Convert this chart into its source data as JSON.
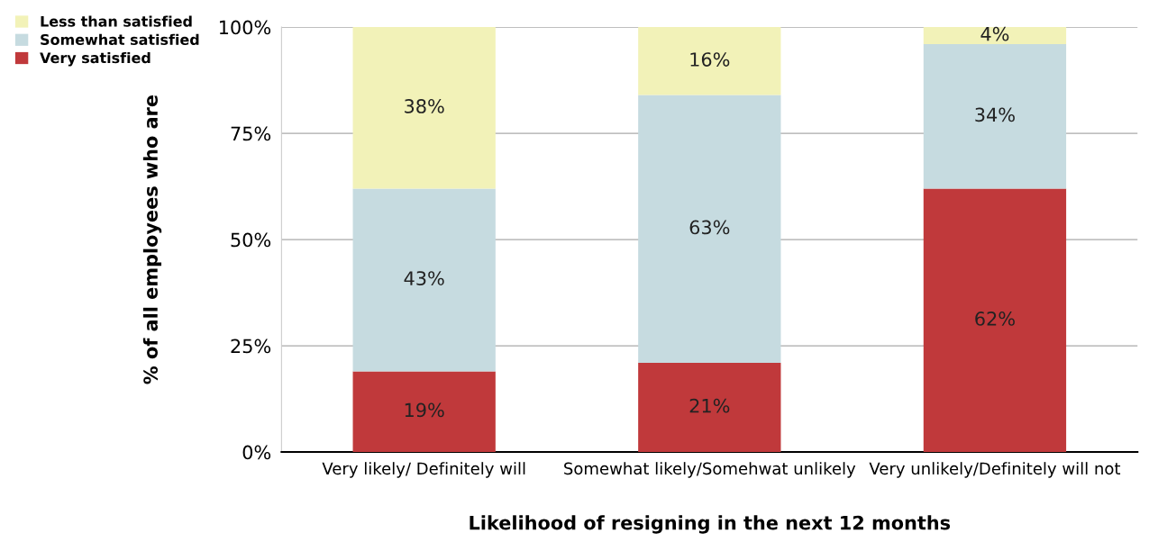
{
  "chart_data": {
    "type": "bar",
    "stacked": true,
    "xlabel": "Likelihood of resigning in the next 12 months",
    "ylabel": "% of all employees who are",
    "categories": [
      "Very likely/ Definitely will",
      "Somewhat likely/Somehwat unlikely",
      "Very unlikely/Definitely will not"
    ],
    "series": [
      {
        "name": "Very satisfied",
        "color": "#c0393b",
        "values": [
          19,
          21,
          62
        ],
        "value_labels": [
          "19%",
          "21%",
          "62%"
        ]
      },
      {
        "name": "Somewhat satisfied",
        "color": "#c6dbe0",
        "values": [
          43,
          63,
          34
        ],
        "value_labels": [
          "43%",
          "63%",
          "34%"
        ]
      },
      {
        "name": "Less than satisfied",
        "color": "#f2f2b8",
        "values": [
          38,
          16,
          4
        ],
        "value_labels": [
          "38%",
          "16%",
          "4%"
        ]
      }
    ],
    "ylim": [
      0,
      100
    ],
    "yticks": [
      {
        "value": 0,
        "label": "0%"
      },
      {
        "value": 25,
        "label": "25%"
      },
      {
        "value": 50,
        "label": "50%"
      },
      {
        "value": 75,
        "label": "75%"
      },
      {
        "value": 100,
        "label": "100%"
      }
    ],
    "grid": "y",
    "legend": "top left"
  }
}
